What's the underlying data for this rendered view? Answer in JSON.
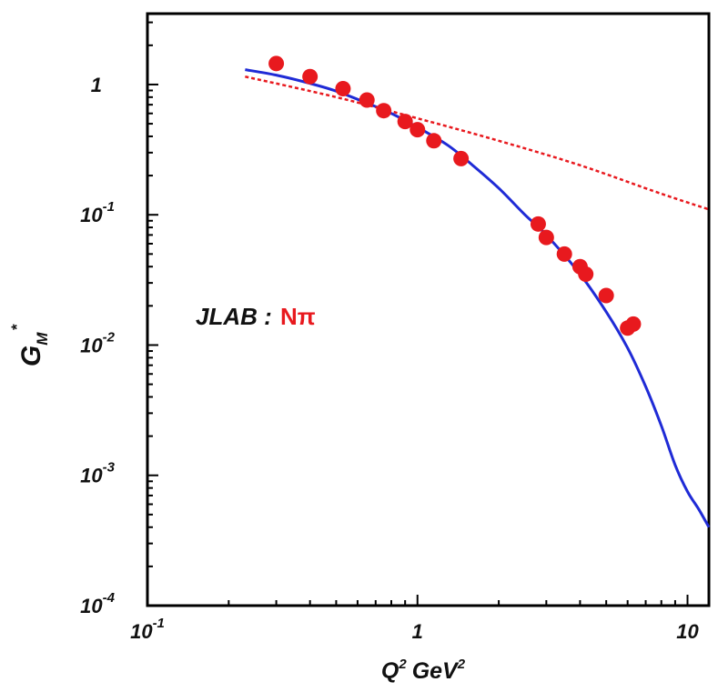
{
  "chart_data": {
    "type": "scatter",
    "title": "",
    "xlabel": {
      "base": "Q",
      "sup1": "2",
      "unit": "GeV",
      "sup2": "2"
    },
    "ylabel": {
      "base": "G",
      "sub": "M",
      "sup": "*"
    },
    "xscale": "log",
    "yscale": "log",
    "xlim": [
      0.1,
      12
    ],
    "ylim": [
      0.0001,
      3.5
    ],
    "x_ticks": [
      {
        "value": 0.1,
        "base": "10",
        "exp": "-1"
      },
      {
        "value": 1,
        "base": "1",
        "exp": ""
      },
      {
        "value": 10,
        "base": "10",
        "exp": ""
      }
    ],
    "y_ticks": [
      {
        "value": 1,
        "base": "1",
        "exp": ""
      },
      {
        "value": 0.1,
        "base": "10",
        "exp": "-1"
      },
      {
        "value": 0.01,
        "base": "10",
        "exp": "-2"
      },
      {
        "value": 0.001,
        "base": "10",
        "exp": "-3"
      },
      {
        "value": 0.0001,
        "base": "10",
        "exp": "-4"
      }
    ],
    "annotation": {
      "source": "JLAB :",
      "channel": "Nπ"
    },
    "series": [
      {
        "name": "JLAB Nπ data",
        "kind": "points",
        "color": "#e8191e",
        "x": [
          0.3,
          0.4,
          0.53,
          0.65,
          0.75,
          0.9,
          1.0,
          1.15,
          1.45,
          2.8,
          3.0,
          3.5,
          4.0,
          4.2,
          5.0,
          6.0,
          6.3
        ],
        "y": [
          1.45,
          1.15,
          0.93,
          0.76,
          0.63,
          0.52,
          0.45,
          0.37,
          0.27,
          0.085,
          0.067,
          0.05,
          0.04,
          0.035,
          0.024,
          0.0135,
          0.0145
        ]
      },
      {
        "name": "Model (solid blue)",
        "kind": "line",
        "color": "#1f2bd6",
        "style": "solid",
        "x": [
          0.23,
          0.3,
          0.4,
          0.5,
          0.65,
          0.8,
          1.0,
          1.3,
          1.6,
          2.0,
          2.5,
          3.0,
          4.0,
          5.0,
          6.0,
          7.0,
          8.0,
          9.0,
          10.0,
          11.0,
          12.0
        ],
        "y": [
          1.3,
          1.18,
          1.02,
          0.89,
          0.72,
          0.6,
          0.47,
          0.34,
          0.24,
          0.16,
          0.1,
          0.07,
          0.035,
          0.018,
          0.0095,
          0.0048,
          0.0024,
          0.0012,
          0.00075,
          0.00055,
          0.0004
        ]
      },
      {
        "name": "Model (dashed red)",
        "kind": "line",
        "color": "#e8191e",
        "style": "dashed",
        "x": [
          0.23,
          0.5,
          1.0,
          2.0,
          4.0,
          8.0,
          12.0
        ],
        "y": [
          1.15,
          0.8,
          0.55,
          0.37,
          0.24,
          0.145,
          0.11
        ]
      }
    ]
  }
}
